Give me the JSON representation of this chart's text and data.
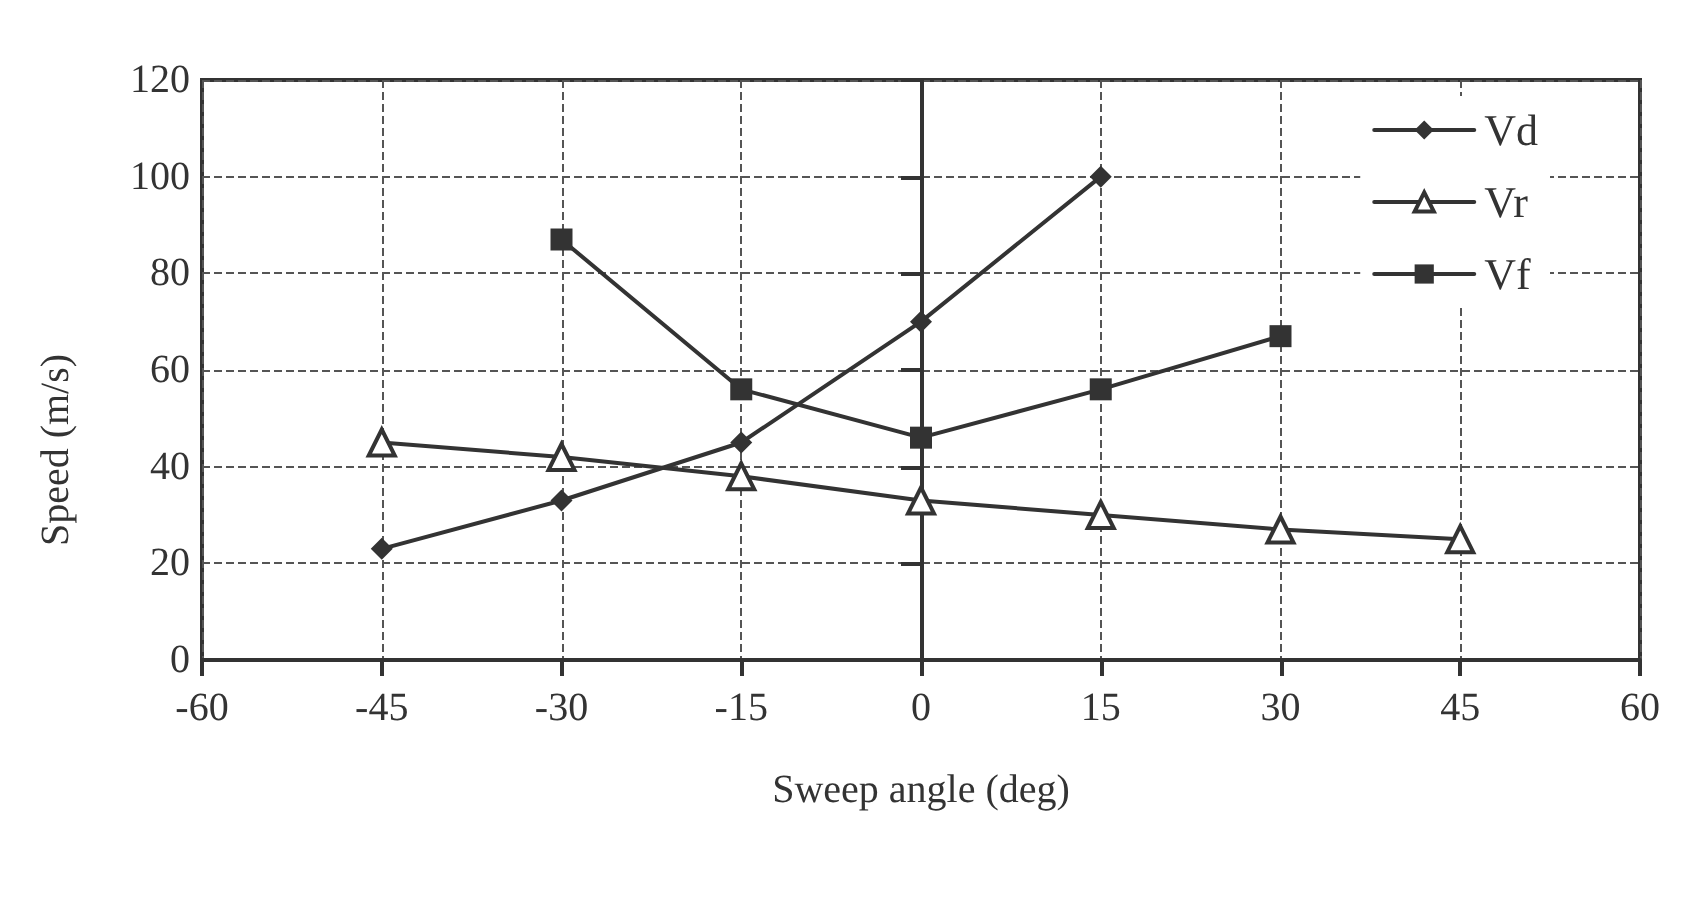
{
  "chart_data": {
    "type": "line",
    "xlabel": "Sweep angle (deg)",
    "ylabel": "Speed (m/s)",
    "xlim": [
      -60,
      60
    ],
    "xticks": [
      -60,
      -45,
      -30,
      -15,
      0,
      15,
      30,
      45,
      60
    ],
    "ylim": [
      0,
      120
    ],
    "yticks": [
      0,
      20,
      40,
      60,
      80,
      100,
      120
    ],
    "grid": true,
    "legend": "top right",
    "line_style": "solid",
    "series": [
      {
        "name": "Vd",
        "color": "#333333",
        "marker": "diamond",
        "x": [
          -45,
          -30,
          -15,
          0,
          15
        ],
        "values": [
          23,
          33,
          45,
          70,
          100
        ]
      },
      {
        "name": "Vr",
        "color": "#333333",
        "marker": "triangle",
        "x": [
          -45,
          -30,
          -15,
          0,
          15,
          30,
          45
        ],
        "values": [
          45,
          42,
          38,
          33,
          30,
          27,
          25
        ]
      },
      {
        "name": "Vf",
        "color": "#333333",
        "marker": "square",
        "x": [
          -30,
          -15,
          0,
          15,
          30
        ],
        "values": [
          87,
          56,
          46,
          56,
          67
        ]
      }
    ]
  }
}
